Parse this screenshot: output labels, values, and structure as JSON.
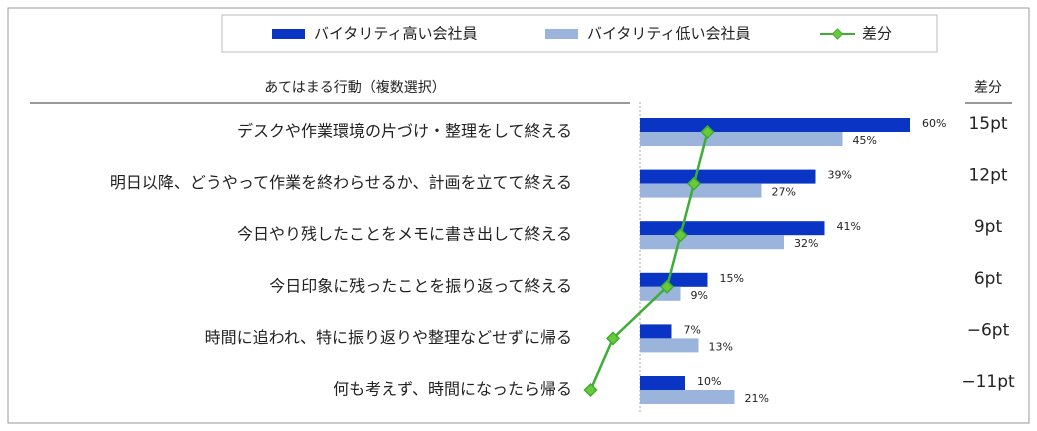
{
  "chart_data": {
    "type": "bar",
    "header": "あてはまる行動（複数選択）",
    "diff_header": "差分",
    "categories": [
      "デスクや作業環境の片づけ・整理をして終える",
      "明日以降、どうやって作業を終わらせるか、計画を立てて終える",
      "今日やり残したことをメモに書き出して終える",
      "今日印象に残ったことを振り返って終える",
      "時間に追われ、特に振り返りや整理などせずに帰る",
      "何も考えず、時間になったら帰る"
    ],
    "series": [
      {
        "name": "バイタリティ高い会社員",
        "color": "#0a35c4",
        "values": [
          60,
          39,
          41,
          15,
          7,
          10
        ],
        "value_labels": [
          "60%",
          "39%",
          "41%",
          "15%",
          "7%",
          "10%"
        ]
      },
      {
        "name": "バイタリティ低い会社員",
        "color": "#9bb4dc",
        "values": [
          45,
          27,
          32,
          9,
          13,
          21
        ],
        "value_labels": [
          "45%",
          "27%",
          "32%",
          "9%",
          "13%",
          "21%"
        ]
      },
      {
        "name": "差分",
        "type": "line",
        "color": "#3cae35",
        "values": [
          15,
          12,
          9,
          6,
          -6,
          -11
        ],
        "value_labels": [
          "15pt",
          "12pt",
          "9pt",
          "6pt",
          "−6pt",
          "−11pt"
        ]
      }
    ]
  }
}
